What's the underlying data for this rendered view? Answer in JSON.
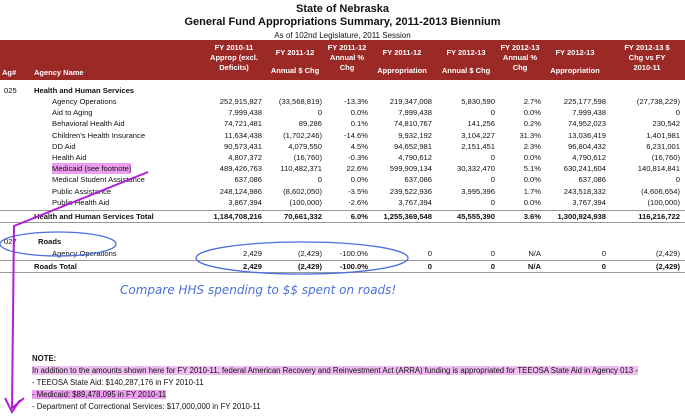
{
  "header": {
    "title1": "State of Nebraska",
    "title2": "General Fund Appropriations Summary, 2011-2013 Biennium",
    "subtitle": "As of 102nd Legislature, 2011 Session"
  },
  "columns": {
    "agency_num": "Ag#",
    "agency_name": "Agency Name",
    "c1": [
      "FY 2010-11",
      "Approp (excl.",
      "Deficits)"
    ],
    "c2": [
      "FY 2011-12",
      "Annual $ Chg"
    ],
    "c3": [
      "FY 2011-12",
      "Annual %",
      "Chg"
    ],
    "c4": [
      "FY 2011-12",
      "Appropriation"
    ],
    "c5": [
      "FY 2012-13",
      "Annual $ Chg"
    ],
    "c6": [
      "FY 2012-13",
      "Annual %",
      "Chg"
    ],
    "c7": [
      "FY 2012-13",
      "Appropriation"
    ],
    "c8": [
      "FY 2012-13 $",
      "Chg vs FY",
      "2010-11"
    ]
  },
  "hhs": {
    "agency_num": "025",
    "section_title": "Health and Human Services",
    "rows": [
      {
        "name": "Agency Operations",
        "v": [
          "252,915,827",
          "(33,568,819)",
          "-13.3%",
          "219,347,008",
          "5,830,590",
          "2.7%",
          "225,177,598",
          "(27,738,229)"
        ]
      },
      {
        "name": "Aid to Aging",
        "v": [
          "7,999,438",
          "0",
          "0.0%",
          "7,999,438",
          "0",
          "0.0%",
          "7,999,438",
          "0"
        ]
      },
      {
        "name": "Behavioral Health Aid",
        "v": [
          "74,721,481",
          "89,286",
          "0.1%",
          "74,810,767",
          "141,256",
          "0.2%",
          "74,952,023",
          "230,542"
        ]
      },
      {
        "name": "Children's Health Insurance",
        "v": [
          "11,634,438",
          "(1,702,246)",
          "-14.6%",
          "9,932,192",
          "3,104,227",
          "31.3%",
          "13,036,419",
          "1,401,981"
        ]
      },
      {
        "name": "DD Aid",
        "v": [
          "90,573,431",
          "4,079,550",
          "4.5%",
          "94,652,981",
          "2,151,451",
          "2.3%",
          "96,804,432",
          "6,231,001"
        ]
      },
      {
        "name": "Health Aid",
        "v": [
          "4,807,372",
          "(16,760)",
          "-0.3%",
          "4,790,612",
          "0",
          "0.0%",
          "4,790,612",
          "(16,760)"
        ]
      },
      {
        "name": "Medicaid (see footnote)",
        "v": [
          "489,426,763",
          "110,482,371",
          "22.6%",
          "599,909,134",
          "30,332,470",
          "5.1%",
          "630,241,604",
          "140,814,841"
        ]
      },
      {
        "name": "Medical Student Assistance",
        "v": [
          "637,086",
          "0",
          "0.0%",
          "637,086",
          "0",
          "0.0%",
          "637,086",
          "0"
        ]
      },
      {
        "name": "Public Assistance",
        "v": [
          "248,124,986",
          "(8,602,050)",
          "-3.5%",
          "239,522,936",
          "3,995,396",
          "1.7%",
          "243,518,332",
          "(4,606,654)"
        ]
      },
      {
        "name": "Public Health Aid",
        "v": [
          "3,867,394",
          "(100,000)",
          "-2.6%",
          "3,767,394",
          "0",
          "0.0%",
          "3,767,394",
          "(100,000)"
        ]
      }
    ],
    "total": {
      "name": "Health and Human Services Total",
      "v": [
        "1,184,708,216",
        "70,661,332",
        "6.0%",
        "1,255,369,548",
        "45,555,390",
        "3.6%",
        "1,300,924,938",
        "116,216,722"
      ]
    }
  },
  "roads": {
    "agency_num": "027",
    "section_title": "Roads",
    "rows": [
      {
        "name": "Agency Operations",
        "v": [
          "2,429",
          "(2,429)",
          "-100.0%",
          "0",
          "0",
          "N/A",
          "0",
          "(2,429)"
        ]
      }
    ],
    "total": {
      "name": "Roads Total",
      "v": [
        "2,429",
        "(2,429)",
        "-100.0%",
        "0",
        "0",
        "N/A",
        "0",
        "(2,429)"
      ]
    }
  },
  "annotation": "Compare HHS spending to $$ spent on roads!",
  "note": {
    "heading": "NOTE:",
    "line1": "In addition to the amounts shown here for FY 2010-11, federal American Recovery and Reinvestment Act (ARRA) funding is appropriated for TEEOSA State Aid in Agency 013 -",
    "line2": "- TEEOSA State Aid: $140,287,176 in FY 2010-11",
    "line3": "- Medicaid: $89,478,095 in FY 2010-11",
    "line4": "- Department of Correctional Services: $17,000,000 in FY 2010-11"
  },
  "colors": {
    "header_bg": "#9b2a27",
    "highlight": "#ee9ef0",
    "annotation": "#4d6fdc",
    "arrow": "#b01fd8"
  }
}
